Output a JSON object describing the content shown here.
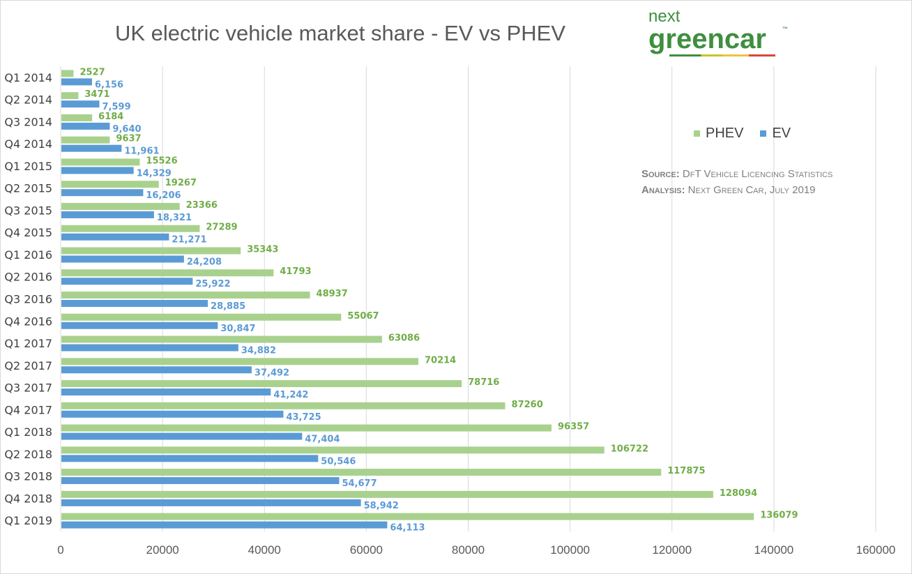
{
  "chart_data": {
    "type": "bar",
    "orientation": "horizontal",
    "title": "UK electric vehicle market share - EV vs PHEV",
    "categories": [
      "Q1 2014",
      "Q2 2014",
      "Q3 2014",
      "Q4 2014",
      "Q1 2015",
      "Q2 2015",
      "Q3 2015",
      "Q4 2015",
      "Q1 2016",
      "Q2 2016",
      "Q3 2016",
      "Q4 2016",
      "Q1 2017",
      "Q2 2017",
      "Q3 2017",
      "Q4 2017",
      "Q1 2018",
      "Q2 2018",
      "Q3 2018",
      "Q4 2018",
      "Q1 2019"
    ],
    "series": [
      {
        "name": "PHEV",
        "color": "#a9d18e",
        "label_color": "#70ad47",
        "values": [
          2527,
          3471,
          6184,
          9637,
          15526,
          19267,
          23366,
          27289,
          35343,
          41793,
          48937,
          55067,
          63086,
          70214,
          78716,
          87260,
          96357,
          106722,
          117875,
          128094,
          136079
        ],
        "labels": [
          "2527",
          "3471",
          "6184",
          "9637",
          "15526",
          "19267",
          "23366",
          "27289",
          "35343",
          "41793",
          "48937",
          "55067",
          "63086",
          "70214",
          "78716",
          "87260",
          "96357",
          "106722",
          "117875",
          "128094",
          "136079"
        ]
      },
      {
        "name": "EV",
        "color": "#5b9bd5",
        "label_color": "#5b9bd5",
        "values": [
          6156,
          7599,
          9640,
          11961,
          14329,
          16206,
          18321,
          21271,
          24208,
          25922,
          28885,
          30847,
          34882,
          37492,
          41242,
          43725,
          47404,
          50546,
          54677,
          58942,
          64113
        ],
        "labels": [
          "6,156",
          "7,599",
          "9,640",
          "11,961",
          "14,329",
          "16,206",
          "18,321",
          "21,271",
          "24,208",
          "25,922",
          "28,885",
          "30,847",
          "34,882",
          "37,492",
          "41,242",
          "43,725",
          "47,404",
          "50,546",
          "54,677",
          "58,942",
          "64,113"
        ]
      }
    ],
    "xlim": [
      0,
      160000
    ],
    "xticks": [
      "0",
      "20000",
      "40000",
      "60000",
      "80000",
      "100000",
      "120000",
      "140000",
      "160000"
    ],
    "grid": true,
    "legend_position": "right"
  },
  "logo": {
    "line1": "next",
    "line2": "greencar",
    "tm": "™"
  },
  "source": {
    "source_label": "Source:",
    "source_text": "DfT Vehicle Licencing Statistics",
    "analysis_label": "Analysis:",
    "analysis_text": "Next Green Car, July 2019"
  }
}
